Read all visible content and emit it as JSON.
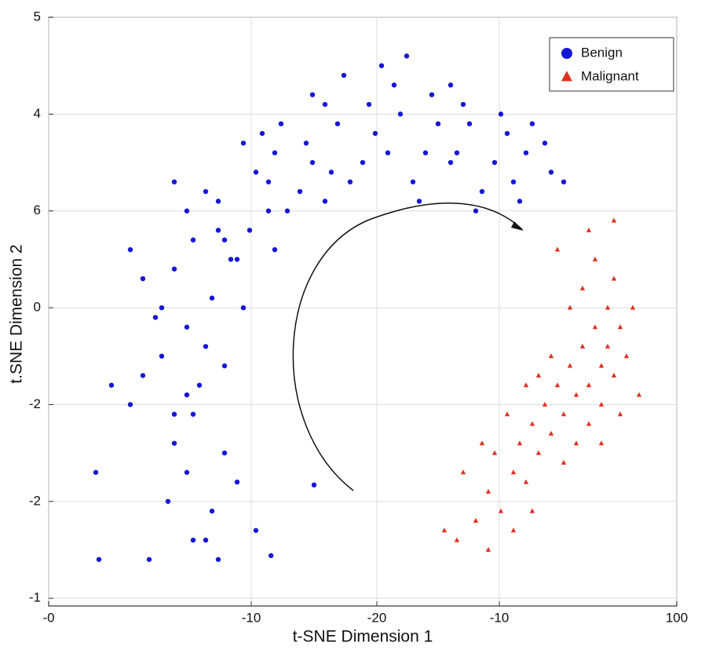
{
  "chart_data": {
    "type": "scatter",
    "xlabel": "t-SNE Dimension 1",
    "ylabel": "t.SNE Dimension 2",
    "xlim": [
      0,
      100
    ],
    "ylim": [
      -1.08,
      5
    ],
    "xticks": [
      {
        "value": 0,
        "label": "-0"
      },
      {
        "value": 32.25,
        "label": "-10"
      },
      {
        "value": 52.25,
        "label": "-20"
      },
      {
        "value": 71.75,
        "label": "-10"
      },
      100
    ],
    "yticks": [
      5,
      4,
      {
        "value": 3,
        "label": "6"
      },
      {
        "value": 2,
        "label": "0"
      },
      {
        "value": 1,
        "label": "-2"
      },
      {
        "value": 0,
        "label": "-2"
      },
      -1
    ],
    "grid": true,
    "legend": "upper right",
    "series": [
      {
        "name": "Benign",
        "color": "#1616d6",
        "marker": "circle",
        "x": [
          22,
          26,
          28,
          20,
          25,
          30,
          23,
          27,
          19,
          33,
          18,
          22,
          15,
          25,
          20,
          13,
          17,
          24,
          28,
          10,
          20,
          26,
          18,
          29,
          23,
          15,
          31,
          22,
          27,
          13,
          27,
          32,
          25,
          35,
          30,
          22,
          33,
          28,
          20,
          36,
          36,
          40,
          34,
          42,
          38,
          31,
          44,
          37,
          41,
          35,
          46,
          50,
          44,
          52,
          48,
          42,
          54,
          47,
          51,
          45,
          56,
          60,
          55,
          62,
          58,
          53,
          64,
          57,
          61,
          59,
          67,
          71,
          66,
          73,
          69,
          64,
          74,
          68,
          72,
          65,
          76,
          80,
          77,
          82,
          75,
          79,
          7.5,
          8,
          16,
          35.4,
          23,
          42.25
        ],
        "y": [
          0.3,
          -0.1,
          0.5,
          0.6,
          -0.4,
          0.2,
          0.9,
          -0.6,
          0.0,
          -0.3,
          1.5,
          1.1,
          1.3,
          1.6,
          0.9,
          1.0,
          1.9,
          1.2,
          1.4,
          1.2,
          2.4,
          2.1,
          2.0,
          2.5,
          2.7,
          2.3,
          2.0,
          1.8,
          2.8,
          2.6,
          3.1,
          2.8,
          3.2,
          3.0,
          2.5,
          3.0,
          3.4,
          2.7,
          3.3,
          2.6,
          3.6,
          3.2,
          3.8,
          3.5,
          3.0,
          3.7,
          3.1,
          3.9,
          3.7,
          3.3,
          3.9,
          3.5,
          4.1,
          3.8,
          3.3,
          4.2,
          3.6,
          4.4,
          4.1,
          3.4,
          4.0,
          3.6,
          4.3,
          3.9,
          3.3,
          4.5,
          3.5,
          4.6,
          4.2,
          3.1,
          3.9,
          3.5,
          4.1,
          3.8,
          3.2,
          4.3,
          3.3,
          3.0,
          4.0,
          3.6,
          3.6,
          3.4,
          3.9,
          3.3,
          3.1,
          3.7,
          0.3,
          -0.6,
          -0.6,
          -0.56,
          -0.4,
          0.17
        ]
      },
      {
        "name": "Malignant",
        "color": "#e0301e",
        "marker": "triangle",
        "x": [
          68,
          70,
          72,
          74,
          75,
          76,
          77,
          78,
          79,
          80,
          81,
          82,
          83,
          84,
          85,
          86,
          86,
          87,
          88,
          88,
          89,
          89,
          90,
          90,
          91,
          92,
          85,
          87,
          83,
          84,
          80,
          78,
          82,
          76,
          73,
          71,
          69,
          66,
          65,
          63,
          94,
          93,
          86,
          90,
          81,
          74,
          77,
          70,
          88,
          91
        ],
        "y": [
          -0.2,
          0.1,
          -0.1,
          0.3,
          0.6,
          0.2,
          0.8,
          0.5,
          1.0,
          0.7,
          1.2,
          0.9,
          1.4,
          1.1,
          1.6,
          1.2,
          0.8,
          1.8,
          1.4,
          1.0,
          2.0,
          1.6,
          1.3,
          2.3,
          1.8,
          1.5,
          2.2,
          2.5,
          2.0,
          0.6,
          1.5,
          1.3,
          0.4,
          1.2,
          0.9,
          0.5,
          0.6,
          0.3,
          -0.4,
          -0.3,
          1.1,
          2.0,
          2.8,
          2.9,
          2.6,
          -0.3,
          -0.1,
          -0.5,
          0.6,
          0.9
        ]
      }
    ]
  }
}
